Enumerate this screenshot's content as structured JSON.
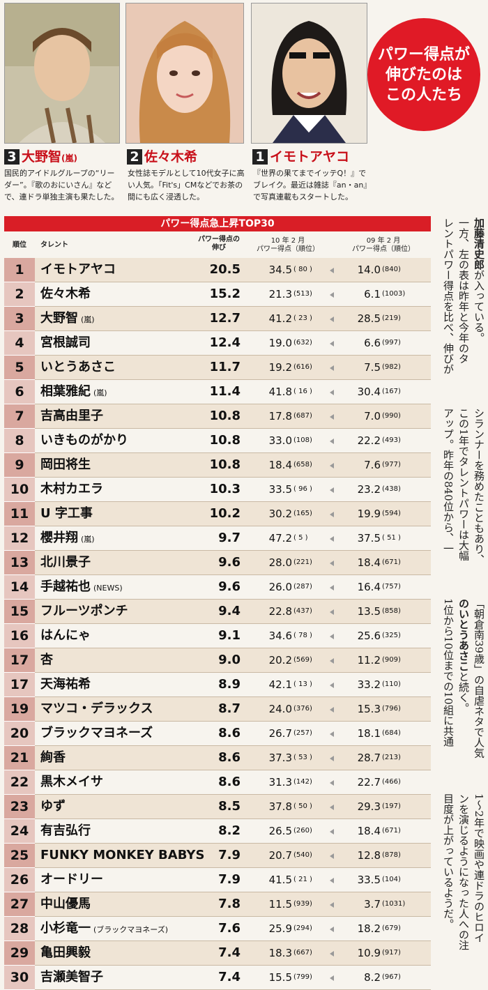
{
  "badge": {
    "lines": [
      "パワー得点が",
      "伸びたのは",
      "この人たち"
    ]
  },
  "featured": [
    {
      "rank": "3",
      "name": "大野智",
      "tag": "(嵐)",
      "desc": "国民的アイドルグループの“リーダー”。『歌のおにいさん』などで、連ドラ単独主演も果たした。"
    },
    {
      "rank": "2",
      "name": "佐々木希",
      "tag": "",
      "desc": "女性誌モデルとして10代女子に高い人気。「Fit's」CMなどでお茶の間にも広く浸透した。"
    },
    {
      "rank": "1",
      "name": "イモトアヤコ",
      "tag": "",
      "desc": "『世界の果てまでイッテQ！』でブレイク。最近は雑誌『an・an』で写真連載もスタートした。"
    }
  ],
  "table": {
    "title": "パワー得点急上昇TOP30",
    "headers": {
      "rank": "順位",
      "talent": "タレント",
      "growth1": "パワー得点の",
      "growth2": "伸び",
      "y10a": "10 年 2 月",
      "y10b": "パワー得点（順位）",
      "y09a": "09 年 2 月",
      "y09b": "パワー得点（順位）"
    },
    "rows": [
      {
        "rank": "1",
        "name": "イモトアヤコ",
        "sub": "",
        "growth": "20.5",
        "s10": "34.5",
        "r10": "( 80 )",
        "s09": "14.0",
        "r09": "(840)"
      },
      {
        "rank": "2",
        "name": "佐々木希",
        "sub": "",
        "growth": "15.2",
        "s10": "21.3",
        "r10": "(513)",
        "s09": "6.1",
        "r09": "(1003)"
      },
      {
        "rank": "3",
        "name": "大野智",
        "sub": "(嵐)",
        "growth": "12.7",
        "s10": "41.2",
        "r10": "( 23 )",
        "s09": "28.5",
        "r09": "(219)"
      },
      {
        "rank": "4",
        "name": "宮根誠司",
        "sub": "",
        "growth": "12.4",
        "s10": "19.0",
        "r10": "(632)",
        "s09": "6.6",
        "r09": "(997)"
      },
      {
        "rank": "5",
        "name": "いとうあさこ",
        "sub": "",
        "growth": "11.7",
        "s10": "19.2",
        "r10": "(616)",
        "s09": "7.5",
        "r09": "(982)"
      },
      {
        "rank": "6",
        "name": "相葉雅紀",
        "sub": "(嵐)",
        "growth": "11.4",
        "s10": "41.8",
        "r10": "( 16 )",
        "s09": "30.4",
        "r09": "(167)"
      },
      {
        "rank": "7",
        "name": "吉高由里子",
        "sub": "",
        "growth": "10.8",
        "s10": "17.8",
        "r10": "(687)",
        "s09": "7.0",
        "r09": "(990)"
      },
      {
        "rank": "8",
        "name": "いきものがかり",
        "sub": "",
        "growth": "10.8",
        "s10": "33.0",
        "r10": "(108)",
        "s09": "22.2",
        "r09": "(493)"
      },
      {
        "rank": "9",
        "name": "岡田将生",
        "sub": "",
        "growth": "10.8",
        "s10": "18.4",
        "r10": "(658)",
        "s09": "7.6",
        "r09": "(977)"
      },
      {
        "rank": "10",
        "name": "木村カエラ",
        "sub": "",
        "growth": "10.3",
        "s10": "33.5",
        "r10": "( 96 )",
        "s09": "23.2",
        "r09": "(438)"
      },
      {
        "rank": "11",
        "name": "U 字工事",
        "sub": "",
        "growth": "10.2",
        "s10": "30.2",
        "r10": "(165)",
        "s09": "19.9",
        "r09": "(594)"
      },
      {
        "rank": "12",
        "name": "櫻井翔",
        "sub": "(嵐)",
        "growth": "9.7",
        "s10": "47.2",
        "r10": "( 5 )",
        "s09": "37.5",
        "r09": "( 51 )"
      },
      {
        "rank": "13",
        "name": "北川景子",
        "sub": "",
        "growth": "9.6",
        "s10": "28.0",
        "r10": "(221)",
        "s09": "18.4",
        "r09": "(671)"
      },
      {
        "rank": "14",
        "name": "手越祐也",
        "sub": "(NEWS)",
        "growth": "9.6",
        "s10": "26.0",
        "r10": "(287)",
        "s09": "16.4",
        "r09": "(757)"
      },
      {
        "rank": "15",
        "name": "フルーツポンチ",
        "sub": "",
        "growth": "9.4",
        "s10": "22.8",
        "r10": "(437)",
        "s09": "13.5",
        "r09": "(858)"
      },
      {
        "rank": "16",
        "name": "はんにゃ",
        "sub": "",
        "growth": "9.1",
        "s10": "34.6",
        "r10": "( 78 )",
        "s09": "25.6",
        "r09": "(325)"
      },
      {
        "rank": "17",
        "name": "杏",
        "sub": "",
        "growth": "9.0",
        "s10": "20.2",
        "r10": "(569)",
        "s09": "11.2",
        "r09": "(909)"
      },
      {
        "rank": "17",
        "name": "天海祐希",
        "sub": "",
        "growth": "8.9",
        "s10": "42.1",
        "r10": "( 13 )",
        "s09": "33.2",
        "r09": "(110)"
      },
      {
        "rank": "19",
        "name": "マツコ・デラックス",
        "sub": "",
        "growth": "8.7",
        "s10": "24.0",
        "r10": "(376)",
        "s09": "15.3",
        "r09": "(796)"
      },
      {
        "rank": "20",
        "name": "ブラックマヨネーズ",
        "sub": "",
        "growth": "8.6",
        "s10": "26.7",
        "r10": "(257)",
        "s09": "18.1",
        "r09": "(684)"
      },
      {
        "rank": "21",
        "name": "絢香",
        "sub": "",
        "growth": "8.6",
        "s10": "37.3",
        "r10": "( 53 )",
        "s09": "28.7",
        "r09": "(213)"
      },
      {
        "rank": "22",
        "name": "黒木メイサ",
        "sub": "",
        "growth": "8.6",
        "s10": "31.3",
        "r10": "(142)",
        "s09": "22.7",
        "r09": "(466)"
      },
      {
        "rank": "23",
        "name": "ゆず",
        "sub": "",
        "growth": "8.5",
        "s10": "37.8",
        "r10": "( 50 )",
        "s09": "29.3",
        "r09": "(197)"
      },
      {
        "rank": "24",
        "name": "有吉弘行",
        "sub": "",
        "growth": "8.2",
        "s10": "26.5",
        "r10": "(260)",
        "s09": "18.4",
        "r09": "(671)"
      },
      {
        "rank": "25",
        "name": "FUNKY MONKEY BABYS",
        "sub": "",
        "growth": "7.9",
        "s10": "20.7",
        "r10": "(540)",
        "s09": "12.8",
        "r09": "(878)"
      },
      {
        "rank": "26",
        "name": "オードリー",
        "sub": "",
        "growth": "7.9",
        "s10": "41.5",
        "r10": "( 21 )",
        "s09": "33.5",
        "r09": "(104)"
      },
      {
        "rank": "27",
        "name": "中山優馬",
        "sub": "",
        "growth": "7.8",
        "s10": "11.5",
        "r10": "(939)",
        "s09": "3.7",
        "r09": "(1031)"
      },
      {
        "rank": "28",
        "name": "小杉竜一",
        "sub": "(ブラックマヨネーズ)",
        "growth": "7.6",
        "s10": "25.9",
        "r10": "(294)",
        "s09": "18.2",
        "r09": "(679)"
      },
      {
        "rank": "29",
        "name": "亀田興毅",
        "sub": "",
        "growth": "7.4",
        "s10": "18.3",
        "r10": "(667)",
        "s09": "10.9",
        "r09": "(917)"
      },
      {
        "rank": "30",
        "name": "吉瀬美智子",
        "sub": "",
        "growth": "7.4",
        "s10": "15.5",
        "r10": "(799)",
        "s09": "8.2",
        "r09": "(967)"
      }
    ]
  },
  "article": {
    "col1_bold": "加藤清史郎",
    "col1": "が入っている。",
    "col2": "一方、左の表は昨年と今年のタ",
    "col3": "レントパワー得点を比べ、伸びが",
    "col4": "シランナーを務めたこともあり、",
    "col5": "この1年でタレントパワーは大幅",
    "col6": "アップ。昨年の840位から、一",
    "col7": "「朝倉南39歳」の自虐ネタで人気",
    "col8_bold": "のいとうあさこ",
    "col8": "と続く。",
    "col9": "1位から10位までの10組に共通",
    "col10": "1～2年で映画や連ドラのヒロイ",
    "col11": "ンを演じるようになった人への注",
    "col12": "目度が上がっているようだ。"
  }
}
